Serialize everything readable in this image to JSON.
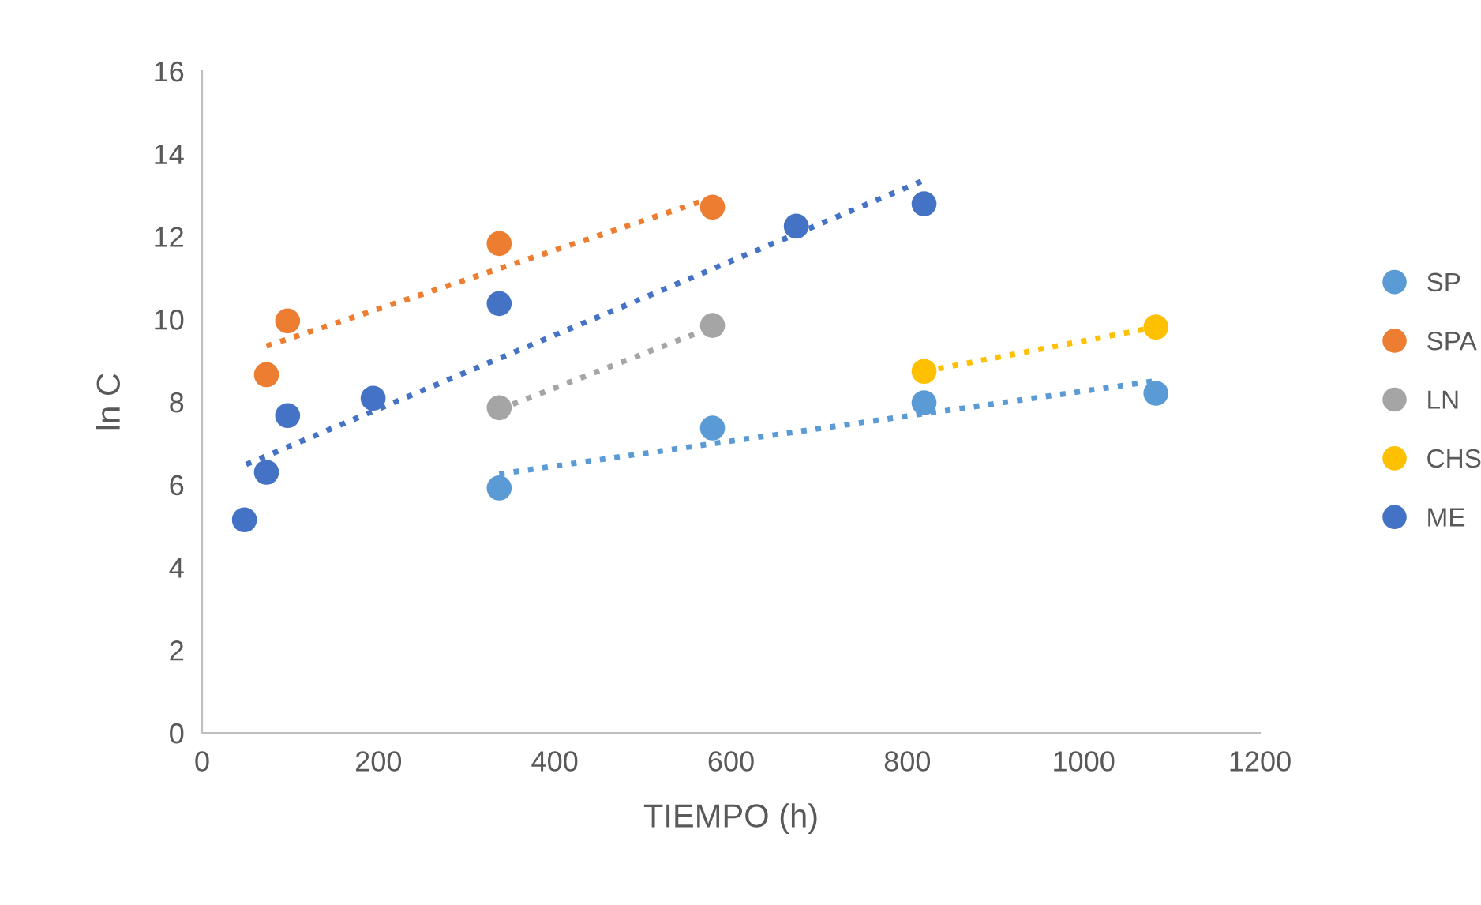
{
  "chart_data": {
    "type": "scatter",
    "xlabel": "TIEMPO (h)",
    "ylabel": "ln C",
    "xlim": [
      0,
      1200
    ],
    "xticks": [
      0,
      200,
      400,
      600,
      800,
      1000,
      1200
    ],
    "ylim": [
      0,
      16
    ],
    "yticks": [
      0,
      2,
      4,
      6,
      8,
      10,
      12,
      14,
      16
    ],
    "grid": false,
    "legend": "right",
    "marker": "circle",
    "series": [
      {
        "name": "SP",
        "color": "#5b9bd5",
        "x": [
          337,
          579,
          819,
          1082
        ],
        "values": [
          5.92,
          7.37,
          7.98,
          8.21
        ]
      },
      {
        "name": "SPA",
        "color": "#ed7d31",
        "x": [
          73,
          97,
          337,
          579
        ],
        "values": [
          8.66,
          9.96,
          11.83,
          12.71
        ]
      },
      {
        "name": "LN",
        "color": "#a5a5a5",
        "x": [
          337,
          579
        ],
        "values": [
          7.86,
          9.85
        ]
      },
      {
        "name": "CHS",
        "color": "#ffc000",
        "x": [
          819,
          1082
        ],
        "values": [
          8.74,
          9.81
        ]
      },
      {
        "name": "ME",
        "color": "#4472c4",
        "x": [
          48,
          73,
          97,
          194,
          337,
          674,
          819
        ],
        "values": [
          5.15,
          6.3,
          7.67,
          8.09,
          10.38,
          12.25,
          12.79
        ]
      },
      {
        "type": "line",
        "line_style": "dotted",
        "marker": "none",
        "color": "#5b9bd5",
        "x": [
          337,
          1082
        ],
        "values": [
          6.26,
          8.51
        ]
      },
      {
        "type": "line",
        "line_style": "dotted",
        "marker": "none",
        "color": "#ed7d31",
        "x": [
          73,
          579
        ],
        "values": [
          9.35,
          12.94
        ]
      },
      {
        "type": "line",
        "line_style": "dotted",
        "marker": "none",
        "color": "#a5a5a5",
        "x": [
          337,
          579
        ],
        "values": [
          7.82,
          9.81
        ]
      },
      {
        "type": "line",
        "line_style": "dotted",
        "marker": "none",
        "color": "#ffc000",
        "x": [
          819,
          1082
        ],
        "values": [
          8.74,
          9.81
        ]
      },
      {
        "type": "line",
        "line_style": "dotted",
        "marker": "none",
        "color": "#4472c4",
        "x": [
          50,
          819
        ],
        "values": [
          6.49,
          13.36
        ]
      }
    ]
  }
}
